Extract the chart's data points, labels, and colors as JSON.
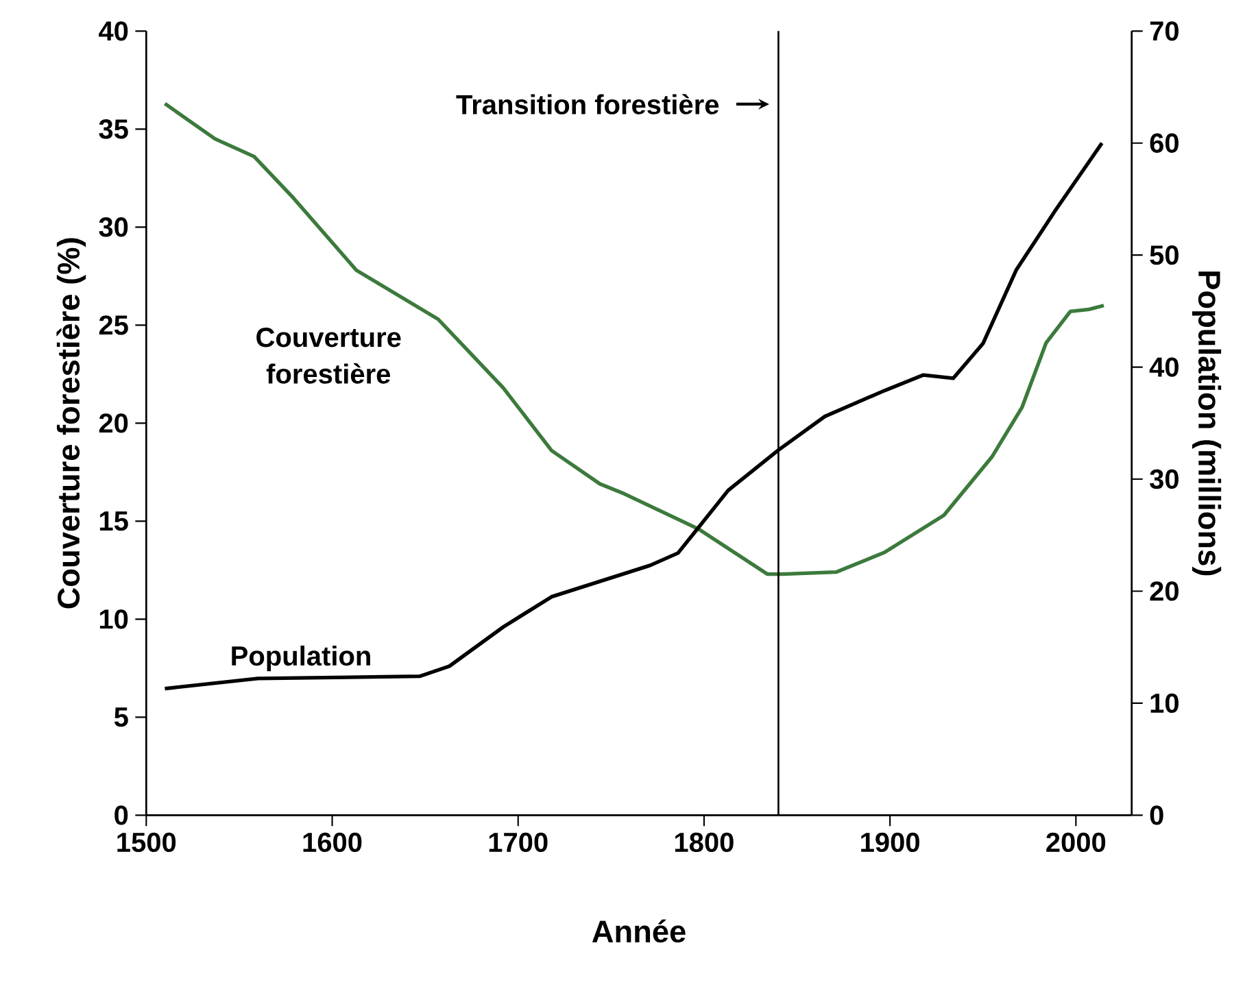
{
  "chart_data": {
    "type": "line",
    "xlabel": "Année",
    "ylabel": "Couverture forestière (%)",
    "y2label": "Population (millions)",
    "xlim": [
      1500,
      2030
    ],
    "xticks": [
      1500,
      1600,
      1700,
      1800,
      1900,
      2000
    ],
    "ylim": [
      0,
      40
    ],
    "yticks": [
      0,
      5,
      10,
      15,
      20,
      25,
      30,
      35,
      40
    ],
    "y2lim": [
      0,
      70
    ],
    "y2ticks": [
      0,
      10,
      20,
      30,
      40,
      50,
      60,
      70
    ],
    "marker": "none",
    "line_style": "solid",
    "ref_lines": [
      {
        "axis": "x",
        "value": 1840,
        "label": "Transition forestière"
      }
    ],
    "series": [
      {
        "name": "Couverture forestière",
        "color": "#3c7a3c",
        "x": [
          1510,
          1537,
          1558,
          1579,
          1613,
          1657,
          1692,
          1718,
          1744,
          1757,
          1797,
          1834,
          1842,
          1871,
          1897,
          1929,
          1955,
          1971,
          1984,
          1997,
          2007,
          2015
        ],
        "values": [
          36.3,
          34.5,
          33.6,
          31.5,
          27.8,
          25.3,
          21.8,
          18.6,
          16.9,
          16.4,
          14.6,
          12.3,
          12.3,
          12.4,
          13.4,
          15.3,
          18.3,
          20.8,
          24.1,
          25.7,
          25.8,
          26.0
        ]
      },
      {
        "name": "Population",
        "color": "#000000",
        "axis": "y2",
        "x": [
          1510,
          1560,
          1647,
          1663,
          1692,
          1718,
          1771,
          1786,
          1813,
          1840,
          1865,
          1897,
          1918,
          1934,
          1950,
          1968,
          1989,
          2014
        ],
        "values": [
          11.3,
          12.2,
          12.4,
          13.3,
          16.8,
          19.5,
          22.3,
          23.4,
          29.0,
          32.6,
          35.6,
          37.9,
          39.3,
          39.0,
          42.1,
          48.7,
          54.0,
          60.0
        ]
      }
    ]
  }
}
